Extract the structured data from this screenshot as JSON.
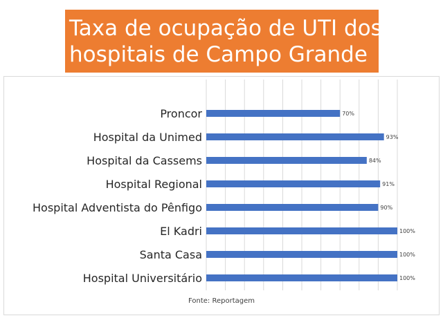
{
  "chart_data": {
    "type": "bar",
    "orientation": "horizontal",
    "title": "Taxa de ocupação de UTI dos hospitais de Campo Grande",
    "title_lines": [
      "Taxa de ocupação de UTI dos",
      "hospitais de Campo Grande"
    ],
    "categories": [
      "Proncor",
      "Hospital da Unimed",
      "Hospital da Cassems",
      "Hospital Regional",
      "Hospital Adventista do Pênfigo",
      "El Kadri",
      "Santa Casa",
      "Hospital Universitário"
    ],
    "values": [
      70,
      93,
      84,
      91,
      90,
      100,
      100,
      100
    ],
    "data_labels": [
      "70%",
      "93%",
      "84%",
      "91%",
      "90%",
      "100%",
      "100%",
      "100%"
    ],
    "xlim": [
      0,
      100
    ],
    "grid": true,
    "xlabel": "",
    "ylabel": "",
    "source": "Fonte: Reportagem"
  },
  "colors": {
    "bar": "#4472c4",
    "title_bg": "#ed7d31",
    "title_text": "#ffffff",
    "grid": "#d9d9d9"
  }
}
